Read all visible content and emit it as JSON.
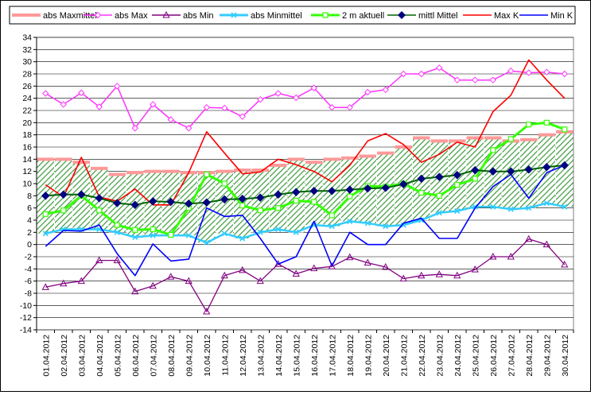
{
  "chart_data": {
    "type": "line",
    "ylim": [
      -14,
      34
    ],
    "ytick_step": 2,
    "grid": true,
    "legend_position": "top",
    "categories": [
      "01.04.2012",
      "02.04.2012",
      "03.04.2012",
      "04.04.2012",
      "05.04.2012",
      "06.04.2012",
      "07.04.2012",
      "08.04.2012",
      "09.04.2012",
      "10.04.2012",
      "11.04.2012",
      "12.04.2012",
      "13.04.2012",
      "14.04.2012",
      "15.04.2012",
      "16.04.2012",
      "17.04.2012",
      "18.04.2012",
      "19.04.2012",
      "20.04.2012",
      "21.04.2012",
      "22.04.2012",
      "23.04.2012",
      "24.04.2012",
      "25.04.2012",
      "26.04.2012",
      "27.04.2012",
      "28.04.2012",
      "29.04.2012",
      "30.04.2012"
    ],
    "series": [
      {
        "key": "absmaxmittel",
        "name": "abs Maxmittel",
        "color": "#ff9999",
        "values": [
          14.0,
          14.0,
          13.5,
          12.5,
          11.5,
          11.8,
          12.0,
          12.0,
          11.8,
          11.8,
          12.0,
          12.2,
          12.2,
          13.0,
          14.0,
          13.5,
          14.0,
          14.2,
          14.5,
          15.0,
          16.0,
          17.5,
          17.0,
          17.0,
          17.5,
          17.5,
          17.0,
          17.2,
          18.0,
          18.5
        ]
      },
      {
        "key": "absmax",
        "name": "abs Max",
        "color": "#ff33ff",
        "values": [
          24.8,
          23.0,
          24.9,
          22.6,
          26.0,
          19.1,
          23.0,
          20.5,
          19.1,
          22.5,
          22.4,
          21.0,
          23.8,
          24.8,
          24.1,
          25.7,
          22.5,
          22.5,
          25.0,
          25.4,
          28.0,
          28.0,
          29.0,
          27.0,
          27.0,
          27.0,
          28.5,
          28.2,
          28.3,
          28.0
        ]
      },
      {
        "key": "absmin",
        "name": "abs Min",
        "color": "#800080",
        "values": [
          -7.0,
          -6.4,
          -6.0,
          -2.6,
          -2.6,
          -7.7,
          -6.8,
          -5.3,
          -6.0,
          -11.0,
          -5.1,
          -4.2,
          -6.0,
          -3.2,
          -4.8,
          -3.9,
          -3.6,
          -2.1,
          -3.0,
          -3.7,
          -5.6,
          -5.1,
          -4.9,
          -5.1,
          -4.1,
          -2.0,
          -2.0,
          0.9,
          0.0,
          -3.3
        ]
      },
      {
        "key": "absminmittel",
        "name": "abs Minmittel",
        "color": "#33ccff",
        "values": [
          1.8,
          2.5,
          2.5,
          2.5,
          2.0,
          1.2,
          1.5,
          1.5,
          1.5,
          0.3,
          1.8,
          1.0,
          2.0,
          2.5,
          2.0,
          3.2,
          3.0,
          3.8,
          3.5,
          3.0,
          3.2,
          4.0,
          5.2,
          5.5,
          6.2,
          6.2,
          5.8,
          6.0,
          6.8,
          6.2
        ]
      },
      {
        "key": "aktuell",
        "name": "2 m aktuell",
        "color": "#33ff00",
        "values": [
          5.0,
          5.6,
          8.0,
          5.6,
          3.2,
          2.4,
          2.5,
          1.6,
          6.0,
          11.5,
          10.0,
          6.4,
          5.6,
          6.0,
          7.2,
          7.0,
          4.8,
          7.9,
          9.6,
          9.5,
          10.0,
          8.5,
          8.0,
          9.8,
          10.8,
          15.5,
          17.3,
          19.7,
          20.0,
          18.9
        ]
      },
      {
        "key": "mittlmittel",
        "name": "mittl Mittel",
        "color": "#000080",
        "values": [
          8.0,
          8.2,
          8.2,
          7.6,
          6.8,
          6.5,
          7.1,
          7.0,
          6.7,
          6.9,
          7.4,
          7.5,
          7.7,
          8.2,
          8.6,
          8.8,
          8.8,
          9.0,
          9.2,
          9.3,
          9.9,
          10.8,
          11.1,
          11.4,
          12.2,
          12.0,
          12.0,
          12.3,
          12.7,
          13.0
        ]
      },
      {
        "key": "maxk",
        "name": "Max K",
        "color": "#ff0000",
        "values": [
          9.8,
          7.8,
          14.3,
          7.8,
          7.1,
          9.1,
          6.5,
          6.5,
          11.8,
          18.5,
          15.0,
          11.6,
          11.9,
          14.0,
          13.1,
          12.0,
          10.3,
          13.0,
          17.0,
          18.2,
          16.4,
          13.5,
          14.8,
          16.8,
          16.0,
          21.8,
          24.5,
          30.3,
          27.0,
          24.0
        ]
      },
      {
        "key": "mink",
        "name": "Min K",
        "color": "#0000ff",
        "values": [
          -0.3,
          2.3,
          2.2,
          3.2,
          -1.5,
          -5.1,
          0.1,
          -2.7,
          -2.4,
          6.0,
          4.6,
          4.8,
          1.0,
          -3.2,
          -2.0,
          3.8,
          -3.5,
          2.0,
          0.0,
          0.0,
          3.5,
          4.3,
          1.0,
          1.0,
          6.0,
          9.5,
          11.5,
          7.6,
          11.8,
          13.0
        ]
      }
    ]
  }
}
